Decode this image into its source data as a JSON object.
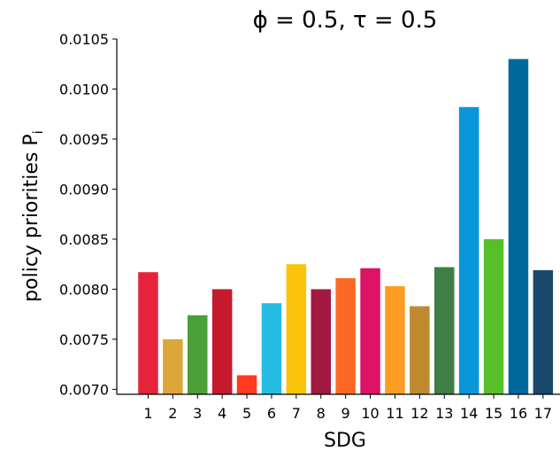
{
  "chart_data": {
    "type": "bar",
    "title": "ϕ = 0.5, τ = 0.5",
    "xlabel": "SDG",
    "ylabel": "policy priorities P",
    "ylabel_subscript": "i",
    "categories": [
      "1",
      "2",
      "3",
      "4",
      "5",
      "6",
      "7",
      "8",
      "9",
      "10",
      "11",
      "12",
      "13",
      "14",
      "15",
      "16",
      "17"
    ],
    "values": [
      0.00817,
      0.0075,
      0.00774,
      0.008,
      0.00714,
      0.00786,
      0.00825,
      0.008,
      0.00811,
      0.00821,
      0.00803,
      0.00783,
      0.00822,
      0.00982,
      0.0085,
      0.0103,
      0.00819
    ],
    "colors": [
      "#e5243b",
      "#dda63a",
      "#4c9f38",
      "#c5192d",
      "#ff3a21",
      "#26bde2",
      "#fcc30b",
      "#a21942",
      "#fd6925",
      "#dd1367",
      "#fd9d24",
      "#bf8b2e",
      "#3f7e44",
      "#0a97d9",
      "#56c02b",
      "#00689d",
      "#19486a"
    ],
    "ylim": [
      0.00695,
      0.0105
    ],
    "yticks": [
      0.007,
      0.0075,
      0.008,
      0.0085,
      0.009,
      0.0095,
      0.01,
      0.0105
    ],
    "ytick_labels": [
      "0.0070",
      "0.0075",
      "0.0080",
      "0.0085",
      "0.0090",
      "0.0095",
      "0.0100",
      "0.0105"
    ],
    "grid": false,
    "legend": "none"
  }
}
